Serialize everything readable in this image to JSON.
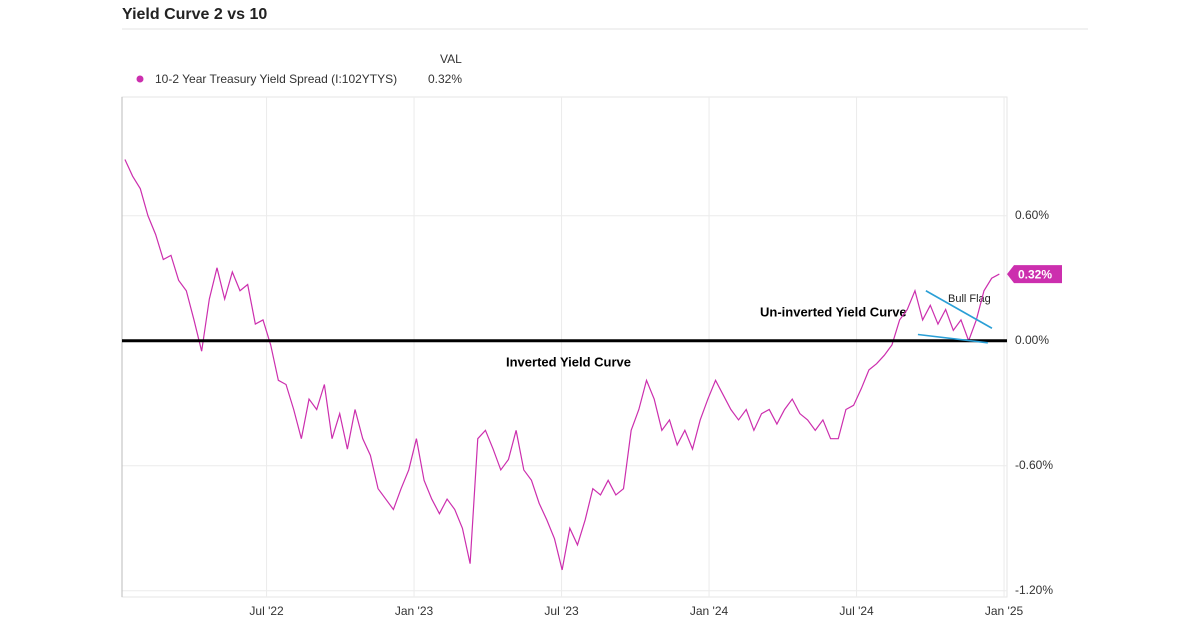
{
  "chart_data": {
    "type": "line",
    "title": "Yield Curve 2 vs 10",
    "legend_header": "VAL",
    "x": [
      2022.02,
      2022.046,
      2022.072,
      2022.098,
      2022.124,
      2022.15,
      2022.176,
      2022.202,
      2022.228,
      2022.254,
      2022.28,
      2022.306,
      2022.332,
      2022.358,
      2022.384,
      2022.41,
      2022.436,
      2022.462,
      2022.488,
      2022.514,
      2022.54,
      2022.566,
      2022.592,
      2022.618,
      2022.644,
      2022.67,
      2022.696,
      2022.722,
      2022.748,
      2022.774,
      2022.8,
      2022.826,
      2022.852,
      2022.878,
      2022.904,
      2022.93,
      2022.956,
      2022.982,
      2023.008,
      2023.034,
      2023.06,
      2023.086,
      2023.112,
      2023.138,
      2023.164,
      2023.19,
      2023.216,
      2023.242,
      2023.268,
      2023.294,
      2023.32,
      2023.346,
      2023.372,
      2023.398,
      2023.424,
      2023.45,
      2023.476,
      2023.502,
      2023.528,
      2023.554,
      2023.58,
      2023.606,
      2023.632,
      2023.658,
      2023.684,
      2023.71,
      2023.736,
      2023.762,
      2023.788,
      2023.814,
      2023.84,
      2023.866,
      2023.892,
      2023.918,
      2023.944,
      2023.97,
      2023.996,
      2024.022,
      2024.048,
      2024.074,
      2024.1,
      2024.126,
      2024.152,
      2024.178,
      2024.204,
      2024.23,
      2024.256,
      2024.282,
      2024.308,
      2024.334,
      2024.36,
      2024.386,
      2024.412,
      2024.438,
      2024.464,
      2024.49,
      2024.516,
      2024.542,
      2024.568,
      2024.594,
      2024.62,
      2024.646,
      2024.672,
      2024.698,
      2024.724,
      2024.75,
      2024.776,
      2024.802,
      2024.828,
      2024.854,
      2024.88,
      2024.906,
      2024.932,
      2024.958,
      2024.984
    ],
    "series": [
      {
        "name": "10-2 Year Treasury Yield Spread (I:102YTYS)",
        "color": "#cc2fae",
        "values": [
          0.87,
          0.79,
          0.73,
          0.6,
          0.51,
          0.39,
          0.41,
          0.29,
          0.24,
          0.1,
          -0.05,
          0.2,
          0.35,
          0.2,
          0.33,
          0.24,
          0.27,
          0.08,
          0.1,
          -0.02,
          -0.19,
          -0.21,
          -0.33,
          -0.47,
          -0.28,
          -0.33,
          -0.21,
          -0.47,
          -0.35,
          -0.52,
          -0.33,
          -0.47,
          -0.55,
          -0.71,
          -0.76,
          -0.81,
          -0.71,
          -0.62,
          -0.47,
          -0.67,
          -0.76,
          -0.83,
          -0.76,
          -0.81,
          -0.9,
          -1.07,
          -0.47,
          -0.43,
          -0.52,
          -0.62,
          -0.57,
          -0.43,
          -0.62,
          -0.67,
          -0.78,
          -0.86,
          -0.95,
          -1.1,
          -0.9,
          -0.98,
          -0.86,
          -0.71,
          -0.74,
          -0.67,
          -0.74,
          -0.71,
          -0.43,
          -0.33,
          -0.19,
          -0.28,
          -0.43,
          -0.38,
          -0.5,
          -0.43,
          -0.52,
          -0.38,
          -0.28,
          -0.19,
          -0.26,
          -0.33,
          -0.38,
          -0.33,
          -0.43,
          -0.35,
          -0.33,
          -0.4,
          -0.33,
          -0.28,
          -0.35,
          -0.38,
          -0.43,
          -0.38,
          -0.47,
          -0.47,
          -0.33,
          -0.31,
          -0.23,
          -0.14,
          -0.11,
          -0.07,
          -0.02,
          0.1,
          0.15,
          0.24,
          0.1,
          0.17,
          0.08,
          0.15,
          0.05,
          0.1,
          0.0,
          0.1,
          0.24,
          0.3,
          0.32
        ]
      }
    ],
    "latest": {
      "value": 0.32,
      "label": "0.32%"
    },
    "xlim": [
      2022.01,
      2025.01
    ],
    "ylim": [
      -1.23,
      1.17
    ],
    "xticks": [
      {
        "value": 2022.5,
        "label": "Jul '22"
      },
      {
        "value": 2023.0,
        "label": "Jan '23"
      },
      {
        "value": 2023.5,
        "label": "Jul '23"
      },
      {
        "value": 2024.0,
        "label": "Jan '24"
      },
      {
        "value": 2024.5,
        "label": "Jul '24"
      },
      {
        "value": 2025.0,
        "label": "Jan '25"
      }
    ],
    "yticks": [
      {
        "value": -1.2,
        "label": "-1.20%"
      },
      {
        "value": -0.6,
        "label": "-0.60%"
      },
      {
        "value": 0,
        "label": "0.00%"
      },
      {
        "value": 0.6,
        "label": "0.60%"
      }
    ],
    "grid": true,
    "reference_line": 0,
    "annotations": [
      "Un-inverted Yield Curve",
      "Inverted Yield Curve",
      "Bull Flag"
    ],
    "flag_lines": {
      "color": "#2a9fd6",
      "lines": [
        {
          "x": [
            2024.735,
            2024.959
          ],
          "y": [
            0.24,
            0.06
          ]
        },
        {
          "x": [
            2024.708,
            2024.945
          ],
          "y": [
            0.03,
            -0.01
          ]
        }
      ]
    }
  }
}
